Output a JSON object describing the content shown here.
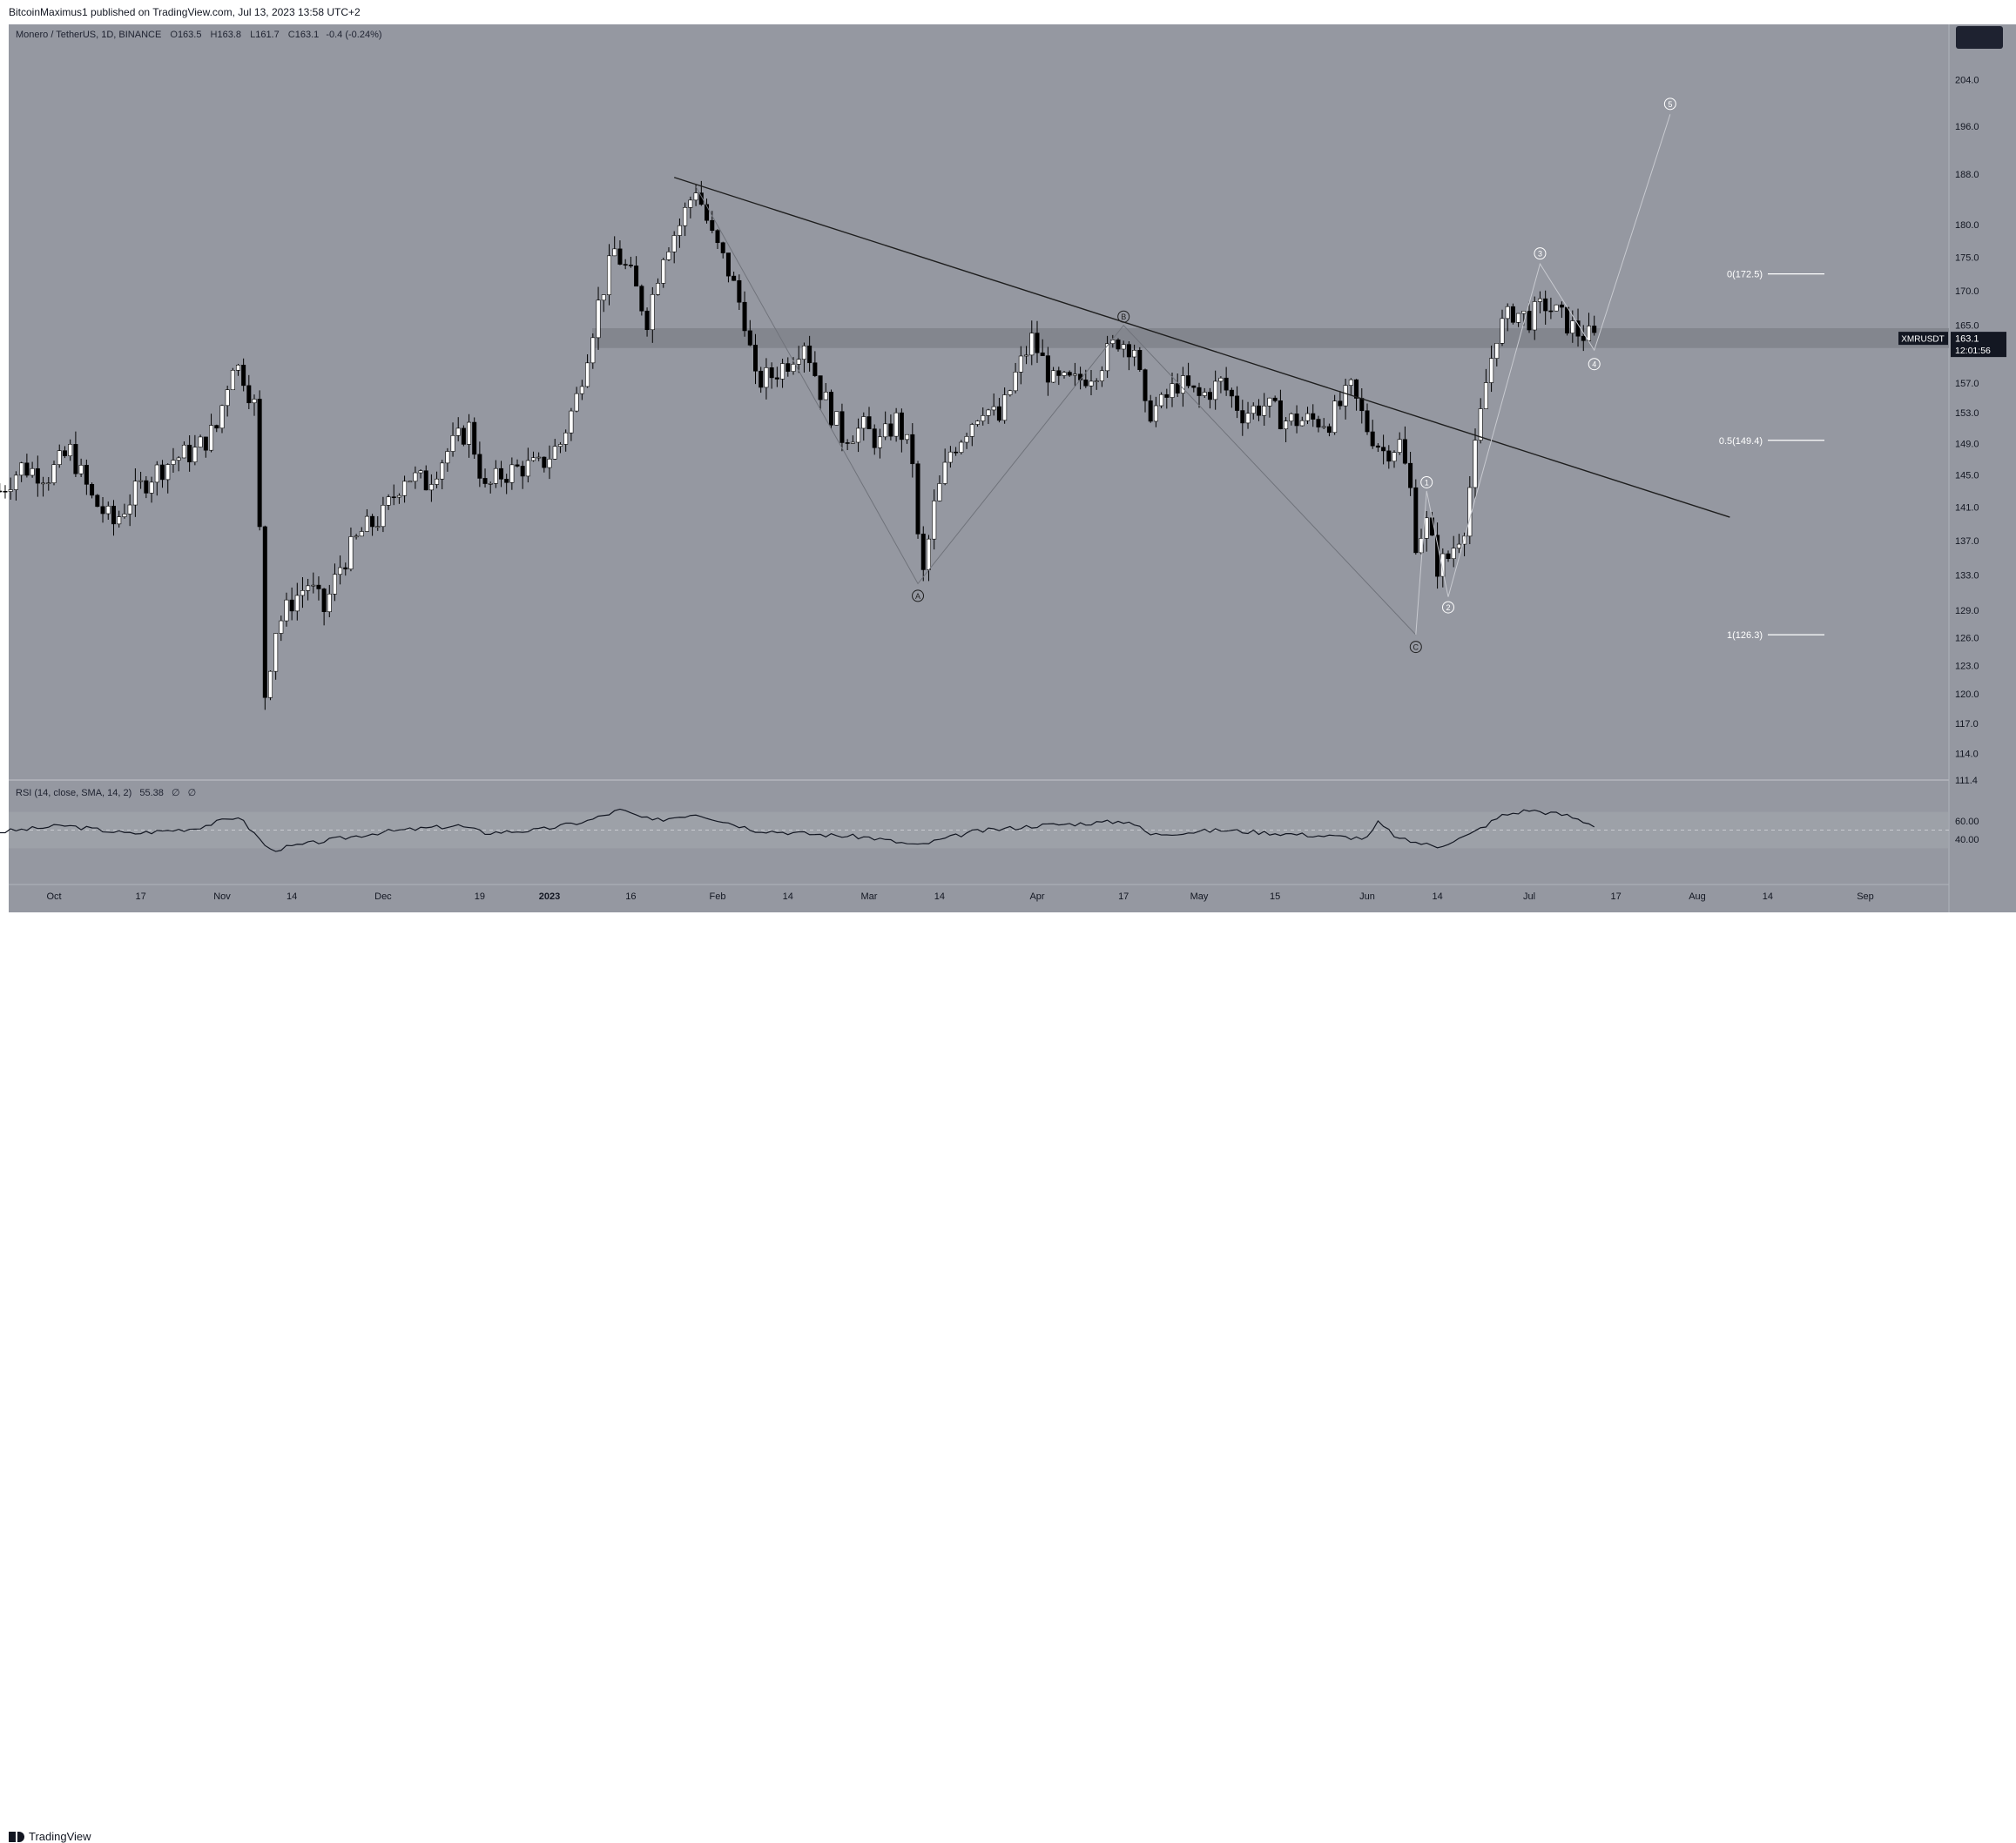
{
  "publisher_line": "BitcoinMaximus1 published on TradingView.com, Jul 13, 2023 13:58 UTC+2",
  "brand": "TradingView",
  "symbol": {
    "name": "Monero / TetherUS, 1D, BINANCE",
    "open_label": "O",
    "open": "163.5",
    "high_label": "H",
    "high": "163.8",
    "low_label": "L",
    "low": "161.7",
    "close_label": "C",
    "close": "163.1",
    "change": "-0.4 (-0.24%)",
    "ticker": "XMRUSDT",
    "last_price": "163.1",
    "countdown": "12:01:56"
  },
  "rsi": {
    "label": "RSI (14, close, SMA, 14, 2)",
    "value": "55.38",
    "extra1": "∅",
    "extra2": "∅"
  },
  "colors": {
    "background": "#9598a1",
    "panel_band": "#a3a6ae",
    "candle_up": "#ffffff",
    "candle_down": "#000000",
    "trendline": "#1e1e1e",
    "wave_line": "#c8cad0",
    "support_zone": "#7d8088",
    "rsi_line": "#131722",
    "price_label_bg": "#131722"
  },
  "chart_data": {
    "type": "candlestick",
    "timeframe": "1D",
    "exchange": "BINANCE",
    "price_axis_ticks": [
      111.4,
      114.0,
      117.0,
      120.0,
      123.0,
      126.0,
      129.0,
      133.0,
      137.0,
      141.0,
      145.0,
      149.0,
      153.0,
      157.0,
      165.0,
      170.0,
      175.0,
      180.0,
      188.0,
      196.0,
      204.0
    ],
    "price_range": [
      111.4,
      214.0
    ],
    "price_scale": "log",
    "time_axis_labels": [
      "Oct",
      "17",
      "Nov",
      "14",
      "Dec",
      "19",
      "2023",
      "16",
      "Feb",
      "14",
      "Mar",
      "14",
      "Apr",
      "17",
      "May",
      "15",
      "Jun",
      "14",
      "Jul",
      "17",
      "Aug",
      "14",
      "Sep"
    ],
    "time_axis_dates": [
      "2022-10-01",
      "2022-10-17",
      "2022-11-01",
      "2022-11-14",
      "2022-12-01",
      "2022-12-19",
      "2023-01-01",
      "2023-01-16",
      "2023-02-01",
      "2023-02-14",
      "2023-03-01",
      "2023-03-14",
      "2023-04-01",
      "2023-04-17",
      "2023-05-01",
      "2023-05-15",
      "2023-06-01",
      "2023-06-14",
      "2023-07-01",
      "2023-07-17",
      "2023-08-01",
      "2023-08-14",
      "2023-09-01"
    ],
    "price_path": [
      [
        "2022-09-21",
        143
      ],
      [
        "2022-09-25",
        146
      ],
      [
        "2022-09-30",
        145
      ],
      [
        "2022-10-04",
        148
      ],
      [
        "2022-10-08",
        142
      ],
      [
        "2022-10-12",
        139
      ],
      [
        "2022-10-15",
        142
      ],
      [
        "2022-10-19",
        145
      ],
      [
        "2022-10-23",
        147
      ],
      [
        "2022-10-27",
        148
      ],
      [
        "2022-10-31",
        151
      ],
      [
        "2022-11-03",
        160
      ],
      [
        "2022-11-05",
        158
      ],
      [
        "2022-11-07",
        154
      ],
      [
        "2022-11-08",
        138
      ],
      [
        "2022-11-09",
        120
      ],
      [
        "2022-11-11",
        127
      ],
      [
        "2022-11-14",
        130
      ],
      [
        "2022-11-17",
        132
      ],
      [
        "2022-11-20",
        129
      ],
      [
        "2022-11-23",
        134
      ],
      [
        "2022-11-27",
        138
      ],
      [
        "2022-12-01",
        140
      ],
      [
        "2022-12-05",
        145
      ],
      [
        "2022-12-09",
        144
      ],
      [
        "2022-12-13",
        148
      ],
      [
        "2022-12-17",
        151
      ],
      [
        "2022-12-20",
        143
      ],
      [
        "2022-12-23",
        145
      ],
      [
        "2022-12-27",
        146
      ],
      [
        "2022-12-30",
        146
      ],
      [
        "2023-01-03",
        149
      ],
      [
        "2023-01-06",
        155
      ],
      [
        "2023-01-10",
        168
      ],
      [
        "2023-01-13",
        176
      ],
      [
        "2023-01-16",
        172
      ],
      [
        "2023-01-19",
        166
      ],
      [
        "2023-01-22",
        176
      ],
      [
        "2023-01-25",
        180
      ],
      [
        "2023-01-28",
        186
      ],
      [
        "2023-01-31",
        178
      ],
      [
        "2023-02-03",
        173
      ],
      [
        "2023-02-06",
        166
      ],
      [
        "2023-02-08",
        157
      ],
      [
        "2023-02-11",
        158
      ],
      [
        "2023-02-14",
        160
      ],
      [
        "2023-02-17",
        163
      ],
      [
        "2023-02-20",
        156
      ],
      [
        "2023-02-24",
        150
      ],
      [
        "2023-02-28",
        151
      ],
      [
        "2023-03-03",
        149
      ],
      [
        "2023-03-06",
        152
      ],
      [
        "2023-03-09",
        147
      ],
      [
        "2023-03-10",
        137
      ],
      [
        "2023-03-11",
        133
      ],
      [
        "2023-03-13",
        141
      ],
      [
        "2023-03-16",
        148
      ],
      [
        "2023-03-19",
        151
      ],
      [
        "2023-03-22",
        154
      ],
      [
        "2023-03-25",
        152
      ],
      [
        "2023-03-28",
        158
      ],
      [
        "2023-03-31",
        163
      ],
      [
        "2023-04-04",
        157
      ],
      [
        "2023-04-08",
        157
      ],
      [
        "2023-04-12",
        159
      ],
      [
        "2023-04-16",
        163
      ],
      [
        "2023-04-19",
        162
      ],
      [
        "2023-04-21",
        153
      ],
      [
        "2023-04-24",
        154
      ],
      [
        "2023-04-27",
        157
      ],
      [
        "2023-05-01",
        155
      ],
      [
        "2023-05-05",
        157
      ],
      [
        "2023-05-09",
        153
      ],
      [
        "2023-05-13",
        154
      ],
      [
        "2023-05-17",
        152
      ],
      [
        "2023-05-21",
        152
      ],
      [
        "2023-05-25",
        152
      ],
      [
        "2023-05-29",
        156
      ],
      [
        "2023-06-01",
        151
      ],
      [
        "2023-06-04",
        148
      ],
      [
        "2023-06-07",
        149
      ],
      [
        "2023-06-09",
        143
      ],
      [
        "2023-06-10",
        137
      ],
      [
        "2023-06-12",
        139
      ],
      [
        "2023-06-14",
        134
      ],
      [
        "2023-06-16",
        135
      ],
      [
        "2023-06-19",
        139
      ],
      [
        "2023-06-21",
        148
      ],
      [
        "2023-06-23",
        157
      ],
      [
        "2023-06-25",
        164
      ],
      [
        "2023-06-28",
        167
      ],
      [
        "2023-07-01",
        166
      ],
      [
        "2023-07-04",
        168
      ],
      [
        "2023-07-07",
        166
      ],
      [
        "2023-07-10",
        164
      ],
      [
        "2023-07-13",
        163.1
      ]
    ],
    "resistance_trendline": [
      [
        "2023-01-24",
        187.5
      ],
      [
        "2023-08-07",
        139.8
      ]
    ],
    "support_zone": [
      161.8,
      164.6
    ],
    "abc_correction": [
      {
        "label": "A",
        "date": "2023-03-10",
        "price": 132
      },
      {
        "label": "B",
        "date": "2023-04-17",
        "price": 165
      },
      {
        "label": "C",
        "date": "2023-06-10",
        "price": 126.3
      }
    ],
    "wave_count": [
      {
        "label": "1",
        "date": "2023-06-12",
        "price": 143
      },
      {
        "label": "2",
        "date": "2023-06-16",
        "price": 130.5
      },
      {
        "label": "3",
        "date": "2023-07-03",
        "price": 174
      },
      {
        "label": "4",
        "date": "2023-07-13",
        "price": 161.5
      },
      {
        "label": "5",
        "date": "2023-07-27",
        "price": 198
      }
    ],
    "fibonacci_levels": [
      {
        "label": "0(172.5)",
        "price": 172.5
      },
      {
        "label": "0.5(149.4)",
        "price": 149.4
      },
      {
        "label": "1(126.3)",
        "price": 126.3
      }
    ],
    "rsi_ticks": [
      40.0,
      60.0
    ],
    "rsi_bands": [
      30,
      70
    ],
    "rsi_path": [
      [
        "2022-09-21",
        48
      ],
      [
        "2022-10-03",
        55
      ],
      [
        "2022-10-15",
        46
      ],
      [
        "2022-10-27",
        52
      ],
      [
        "2022-11-04",
        65
      ],
      [
        "2022-11-08",
        40
      ],
      [
        "2022-11-10",
        28
      ],
      [
        "2022-11-20",
        38
      ],
      [
        "2022-12-01",
        48
      ],
      [
        "2022-12-15",
        55
      ],
      [
        "2022-12-20",
        47
      ],
      [
        "2022-12-30",
        50
      ],
      [
        "2023-01-08",
        60
      ],
      [
        "2023-01-14",
        72
      ],
      [
        "2023-01-20",
        60
      ],
      [
        "2023-01-28",
        68
      ],
      [
        "2023-02-08",
        50
      ],
      [
        "2023-02-20",
        45
      ],
      [
        "2023-03-01",
        42
      ],
      [
        "2023-03-10",
        33
      ],
      [
        "2023-03-20",
        48
      ],
      [
        "2023-04-01",
        55
      ],
      [
        "2023-04-12",
        58
      ],
      [
        "2023-04-18",
        60
      ],
      [
        "2023-04-22",
        45
      ],
      [
        "2023-05-05",
        50
      ],
      [
        "2023-05-20",
        45
      ],
      [
        "2023-06-01",
        41
      ],
      [
        "2023-06-03",
        58
      ],
      [
        "2023-06-07",
        40
      ],
      [
        "2023-06-14",
        32
      ],
      [
        "2023-06-20",
        45
      ],
      [
        "2023-06-26",
        66
      ],
      [
        "2023-07-01",
        72
      ],
      [
        "2023-07-08",
        66
      ],
      [
        "2023-07-13",
        55.4
      ]
    ]
  }
}
